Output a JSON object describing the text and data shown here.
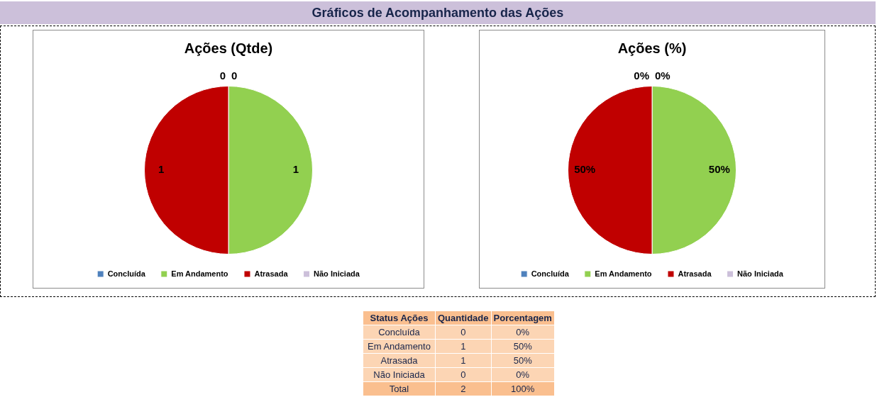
{
  "chart_data": [
    {
      "type": "other",
      "title": "Gráficos de Acompanhamento das Ações"
    },
    {
      "type": "pie",
      "title": "Ações (Qtde)",
      "categories": [
        "Concluída",
        "Em Andamento",
        "Atrasada",
        "Não Iniciada"
      ],
      "values": [
        0,
        1,
        1,
        0
      ],
      "value_labels": [
        "0",
        "1",
        "1",
        "0"
      ],
      "colors": [
        "#4f81bd",
        "#92d050",
        "#c00000",
        "#ccc0da"
      ],
      "legend": "bottom"
    },
    {
      "type": "pie",
      "title": "Ações (%)",
      "categories": [
        "Concluída",
        "Em Andamento",
        "Atrasada",
        "Não Iniciada"
      ],
      "values": [
        0,
        50,
        50,
        0
      ],
      "value_labels": [
        "0%",
        "50%",
        "50%",
        "0%"
      ],
      "colors": [
        "#4f81bd",
        "#92d050",
        "#c00000",
        "#ccc0da"
      ],
      "legend": "bottom"
    },
    {
      "type": "other",
      "ylabel": "Status Ações",
      "categories": [
        "Concluída",
        "Em Andamento",
        "Atrasada",
        "Não Iniciada",
        "Total"
      ],
      "data_labels": true,
      "series": [
        {
          "name": "Quantidade",
          "colors": [
            "#fcd5b4",
            "#fcd5b4",
            "#fcd5b4",
            "#fcd5b4",
            "#fabf8f"
          ],
          "values": [
            0,
            1,
            1,
            0,
            2
          ]
        },
        {
          "name": "Porcentagem",
          "colors": [
            "#fcd5b4",
            "#fcd5b4",
            "#fcd5b4",
            "#fcd5b4",
            "#fabf8f"
          ],
          "values": [
            0,
            50,
            50,
            0,
            100
          ],
          "value_labels": [
            "0%",
            "50%",
            "50%",
            "0%",
            "100%"
          ]
        }
      ]
    }
  ]
}
